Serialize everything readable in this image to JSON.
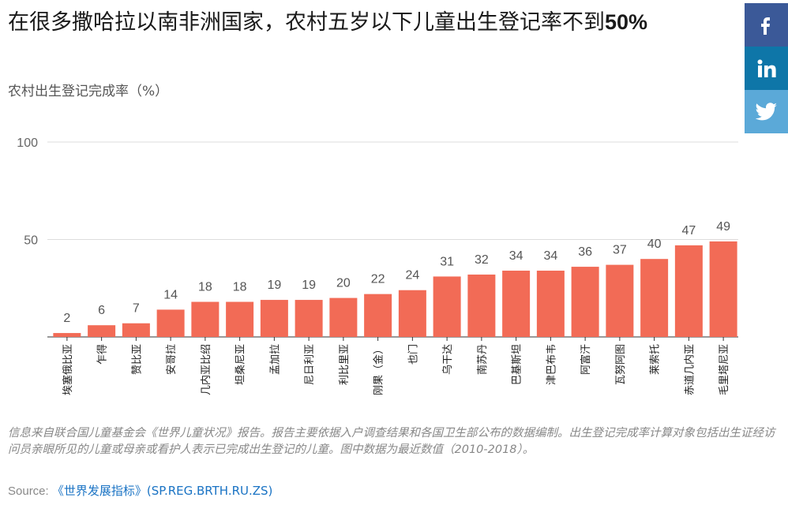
{
  "title_main": "在很多撒哈拉以南非洲国家，农村五岁以下儿童出生登记率不到",
  "title_bold": "50%",
  "subtitle": "农村出生登记完成率（%）",
  "share": {
    "facebook_icon": "facebook-icon",
    "linkedin_icon": "linkedin-icon",
    "twitter_icon": "twitter-icon",
    "facebook_color": "#3b5998",
    "linkedin_color": "#0e76a8",
    "twitter_color": "#5ba9d8"
  },
  "bar_color": "#f26b56",
  "chart_data": {
    "type": "bar",
    "title": "在很多撒哈拉以南非洲国家，农村五岁以下儿童出生登记率不到50%",
    "ylabel": "农村出生登记完成率（%）",
    "xlabel": "",
    "ylim": [
      0,
      100
    ],
    "yticks": [
      50,
      100
    ],
    "categories": [
      "埃塞俄比亚",
      "乍得",
      "赞比亚",
      "安哥拉",
      "几内亚比绍",
      "坦桑尼亚",
      "孟加拉",
      "尼日利亚",
      "利比里亚",
      "刚果（金）",
      "也门",
      "乌干达",
      "南苏丹",
      "巴基斯坦",
      "津巴布韦",
      "阿富汗",
      "瓦努阿图",
      "莱索托",
      "赤道几内亚",
      "毛里塔尼亚"
    ],
    "values": [
      2,
      6,
      7,
      14,
      18,
      18,
      19,
      19,
      20,
      22,
      24,
      31,
      32,
      34,
      34,
      36,
      37,
      40,
      47,
      49
    ]
  },
  "note": "信息来自联合国儿童基金会《世界儿童状况》报告。报告主要依据入户调查结果和各国卫生部公布的数据编制。出生登记完成率计算对象包括出生证经访问员亲眼所见的儿童或母亲或看护人表示已完成出生登记的儿童。图中数据为最近数值（2010-2018）。",
  "source_label": "Source:",
  "source_link": "《世界发展指标》(SP.REG.BRTH.RU.ZS)"
}
